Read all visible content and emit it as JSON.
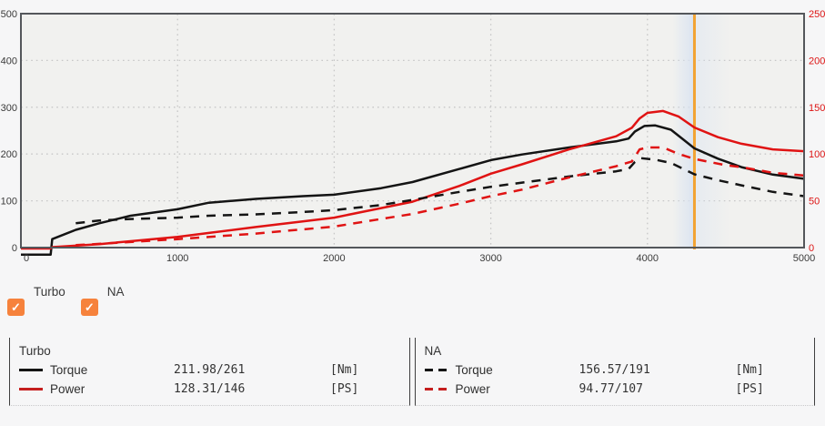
{
  "chart_data": {
    "type": "line",
    "title": "",
    "xlabel": "",
    "ylabel_left": "",
    "ylabel_right": "",
    "x_axis": {
      "min": 0,
      "max": 5000,
      "ticks": [
        0,
        1000,
        2000,
        3000,
        4000,
        5000
      ]
    },
    "y_left": {
      "min": 0,
      "max": 500,
      "ticks": [
        0,
        100,
        200,
        300,
        400,
        500
      ],
      "tick_color": "#3a3a3a"
    },
    "y_right": {
      "min": 0,
      "max": 250,
      "ticks": [
        0,
        50,
        100,
        150,
        200,
        250
      ],
      "tick_color": "#dd1414"
    },
    "grid": "dotted",
    "cursor_rpm": 4300,
    "cursor_color": "#f2a333",
    "cursor_band_color": "#d9e3f1",
    "plot_bg": "#f1f1ef",
    "border_color": "#54575b",
    "series": [
      {
        "name": "Turbo Torque",
        "axis": "left",
        "color": "#141414",
        "style": "solid",
        "points": [
          [
            0,
            -15
          ],
          [
            190,
            -15
          ],
          [
            200,
            18
          ],
          [
            350,
            38
          ],
          [
            500,
            52
          ],
          [
            700,
            68
          ],
          [
            1000,
            82
          ],
          [
            1200,
            96
          ],
          [
            1500,
            104
          ],
          [
            1800,
            110
          ],
          [
            2000,
            113
          ],
          [
            2300,
            127
          ],
          [
            2500,
            140
          ],
          [
            2800,
            168
          ],
          [
            3000,
            187
          ],
          [
            3200,
            199
          ],
          [
            3500,
            214
          ],
          [
            3800,
            227
          ],
          [
            3880,
            233
          ],
          [
            3920,
            248
          ],
          [
            3980,
            260
          ],
          [
            4050,
            261
          ],
          [
            4150,
            252
          ],
          [
            4300,
            211.98
          ],
          [
            4450,
            190
          ],
          [
            4600,
            172
          ],
          [
            4800,
            156
          ],
          [
            5000,
            147
          ]
        ]
      },
      {
        "name": "Turbo Power",
        "axis": "right",
        "color": "#e01313",
        "style": "solid",
        "points": [
          [
            0,
            -1
          ],
          [
            190,
            -1
          ],
          [
            200,
            0.5
          ],
          [
            500,
            3.7
          ],
          [
            1000,
            11.5
          ],
          [
            1500,
            22
          ],
          [
            2000,
            32
          ],
          [
            2500,
            49
          ],
          [
            2800,
            66
          ],
          [
            3000,
            79
          ],
          [
            3200,
            89
          ],
          [
            3500,
            105
          ],
          [
            3800,
            119
          ],
          [
            3900,
            128
          ],
          [
            3950,
            138
          ],
          [
            4000,
            144
          ],
          [
            4100,
            146
          ],
          [
            4200,
            140
          ],
          [
            4300,
            128.31
          ],
          [
            4450,
            118
          ],
          [
            4600,
            111
          ],
          [
            4800,
            105
          ],
          [
            5000,
            103
          ]
        ]
      },
      {
        "name": "NA Torque",
        "axis": "left",
        "color": "#141414",
        "style": "dashed",
        "points": [
          [
            350,
            52
          ],
          [
            500,
            58
          ],
          [
            700,
            61
          ],
          [
            1000,
            64
          ],
          [
            1200,
            68
          ],
          [
            1500,
            71
          ],
          [
            1800,
            76
          ],
          [
            2000,
            80
          ],
          [
            2300,
            91
          ],
          [
            2500,
            102
          ],
          [
            2800,
            119
          ],
          [
            3000,
            130
          ],
          [
            3200,
            139
          ],
          [
            3500,
            152
          ],
          [
            3800,
            163
          ],
          [
            3880,
            168
          ],
          [
            3920,
            183
          ],
          [
            3960,
            191
          ],
          [
            4050,
            188
          ],
          [
            4150,
            181
          ],
          [
            4300,
            156.57
          ],
          [
            4450,
            144
          ],
          [
            4600,
            133
          ],
          [
            4800,
            119
          ],
          [
            5000,
            110
          ]
        ]
      },
      {
        "name": "NA Power",
        "axis": "right",
        "color": "#e01313",
        "style": "dashed",
        "points": [
          [
            350,
            2.6
          ],
          [
            500,
            4
          ],
          [
            1000,
            9
          ],
          [
            1500,
            15
          ],
          [
            2000,
            22.5
          ],
          [
            2500,
            36
          ],
          [
            2800,
            47
          ],
          [
            3000,
            55
          ],
          [
            3200,
            62
          ],
          [
            3500,
            75
          ],
          [
            3800,
            87
          ],
          [
            3900,
            92
          ],
          [
            3950,
            105
          ],
          [
            4000,
            107
          ],
          [
            4100,
            107
          ],
          [
            4200,
            100
          ],
          [
            4300,
            94.77
          ],
          [
            4500,
            88
          ],
          [
            4600,
            86
          ],
          [
            4800,
            80
          ],
          [
            5000,
            77
          ]
        ]
      }
    ]
  },
  "checkboxes": [
    {
      "label": "Turbo",
      "checked": true,
      "check_glyph": "✓"
    },
    {
      "label": "NA",
      "checked": true,
      "check_glyph": "✓"
    }
  ],
  "legend": {
    "sections": [
      {
        "title": "Turbo",
        "rows": [
          {
            "label": "Torque",
            "value": "211.98/261",
            "unit": "[Nm]"
          },
          {
            "label": "Power",
            "value": "128.31/146",
            "unit": "[PS]"
          }
        ]
      },
      {
        "title": "NA",
        "rows": [
          {
            "label": "Torque",
            "value": "156.57/191",
            "unit": "[Nm]"
          },
          {
            "label": "Power",
            "value": "94.77/107",
            "unit": "[PS]"
          }
        ]
      }
    ]
  }
}
